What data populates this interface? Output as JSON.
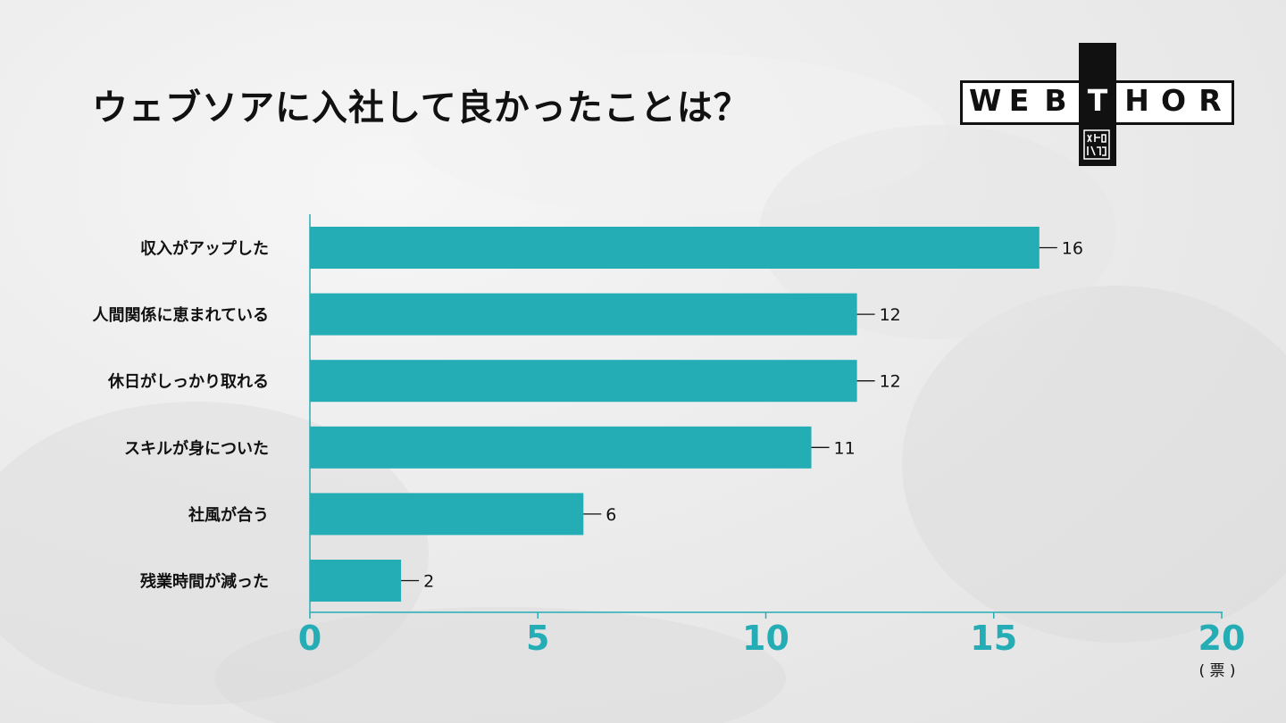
{
  "title": "ウェブソアに入社して良かったことは？",
  "logo": {
    "letters": [
      "W",
      "E",
      "B",
      "T",
      "H",
      "O",
      "R"
    ],
    "highlight_index": 3,
    "stamp_text": "ウェブ ソア"
  },
  "colors": {
    "bar": "#25adb6",
    "axis": "#25adb6",
    "text": "#111111"
  },
  "chart_data": {
    "type": "bar",
    "orientation": "horizontal",
    "categories": [
      "収入がアップした",
      "人間関係に恵まれている",
      "休日がしっかり取れる",
      "スキルが身についた",
      "社風が合う",
      "残業時間が減った"
    ],
    "values": [
      16,
      12,
      12,
      11,
      6,
      2
    ],
    "xlim": [
      0,
      20
    ],
    "xticks": [
      0,
      5,
      10,
      15,
      20
    ],
    "xunit": "( 票 )",
    "grid": false,
    "legend": "none"
  }
}
